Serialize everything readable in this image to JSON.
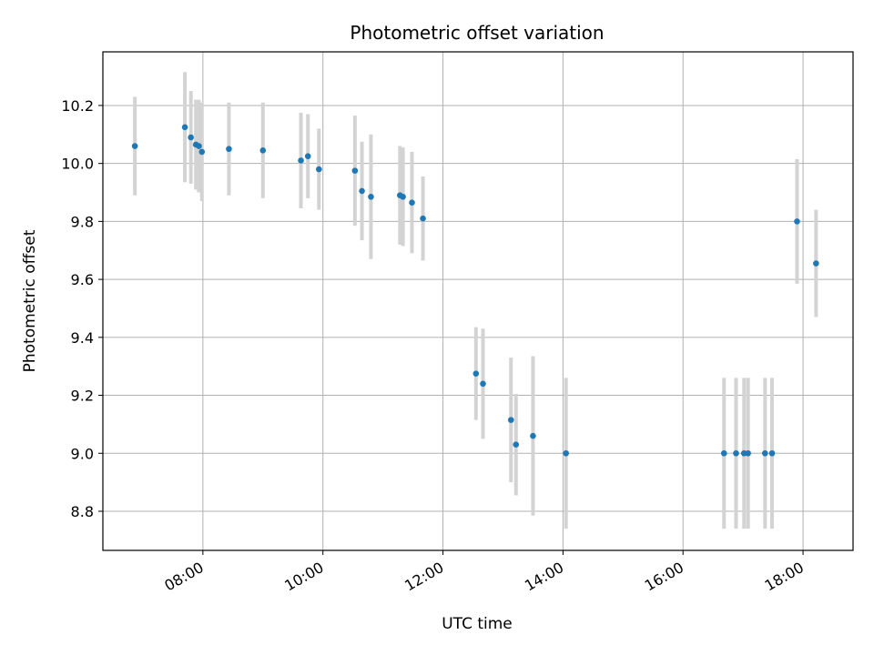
{
  "chart_data": {
    "type": "scatter",
    "title": "Photometric offset variation",
    "xlabel": "UTC time",
    "ylabel": "Photometric offset",
    "xlim": [
      "06:20",
      "18:50"
    ],
    "ylim": [
      8.665,
      10.385
    ],
    "x_ticks": [
      "08:00",
      "10:00",
      "12:00",
      "14:00",
      "16:00",
      "18:00"
    ],
    "y_ticks": [
      8.8,
      9.0,
      9.2,
      9.4,
      9.6,
      9.8,
      10.0,
      10.2
    ],
    "y_tick_labels": [
      "8.8",
      "9.0",
      "9.2",
      "9.4",
      "9.6",
      "9.8",
      "10.0",
      "10.2"
    ],
    "grid": true,
    "point_color": "#1f77b4",
    "errorbar_color": "#d3d3d3",
    "points": [
      {
        "x": "06:52",
        "y": 10.06,
        "err": 0.17
      },
      {
        "x": "07:42",
        "y": 10.125,
        "err": 0.19
      },
      {
        "x": "07:48",
        "y": 10.09,
        "err": 0.16
      },
      {
        "x": "07:53",
        "y": 10.065,
        "err": 0.155
      },
      {
        "x": "07:56",
        "y": 10.06,
        "err": 0.16
      },
      {
        "x": "07:59",
        "y": 10.04,
        "err": 0.17
      },
      {
        "x": "08:26",
        "y": 10.05,
        "err": 0.16
      },
      {
        "x": "09:00",
        "y": 10.045,
        "err": 0.165
      },
      {
        "x": "09:38",
        "y": 10.01,
        "err": 0.165
      },
      {
        "x": "09:45",
        "y": 10.025,
        "err": 0.145
      },
      {
        "x": "09:56",
        "y": 9.98,
        "err": 0.14
      },
      {
        "x": "10:32",
        "y": 9.975,
        "err": 0.19
      },
      {
        "x": "10:39",
        "y": 9.905,
        "err": 0.17
      },
      {
        "x": "10:48",
        "y": 9.885,
        "err": 0.215
      },
      {
        "x": "11:17",
        "y": 9.89,
        "err": 0.17
      },
      {
        "x": "11:20",
        "y": 9.885,
        "err": 0.17
      },
      {
        "x": "11:29",
        "y": 9.865,
        "err": 0.175
      },
      {
        "x": "11:40",
        "y": 9.81,
        "err": 0.145
      },
      {
        "x": "12:33",
        "y": 9.275,
        "err": 0.16
      },
      {
        "x": "12:40",
        "y": 9.24,
        "err": 0.19
      },
      {
        "x": "13:08",
        "y": 9.115,
        "err": 0.215
      },
      {
        "x": "13:13",
        "y": 9.03,
        "err": 0.175
      },
      {
        "x": "13:30",
        "y": 9.06,
        "err": 0.275
      },
      {
        "x": "14:03",
        "y": 9.0,
        "err": 0.26
      },
      {
        "x": "16:41",
        "y": 9.0,
        "err": 0.26
      },
      {
        "x": "16:53",
        "y": 9.0,
        "err": 0.26
      },
      {
        "x": "17:01",
        "y": 9.0,
        "err": 0.26
      },
      {
        "x": "17:05",
        "y": 9.0,
        "err": 0.26
      },
      {
        "x": "17:22",
        "y": 9.0,
        "err": 0.26
      },
      {
        "x": "17:29",
        "y": 9.0,
        "err": 0.26
      },
      {
        "x": "17:54",
        "y": 9.8,
        "err": 0.215
      },
      {
        "x": "18:13",
        "y": 9.655,
        "err": 0.185
      }
    ]
  }
}
